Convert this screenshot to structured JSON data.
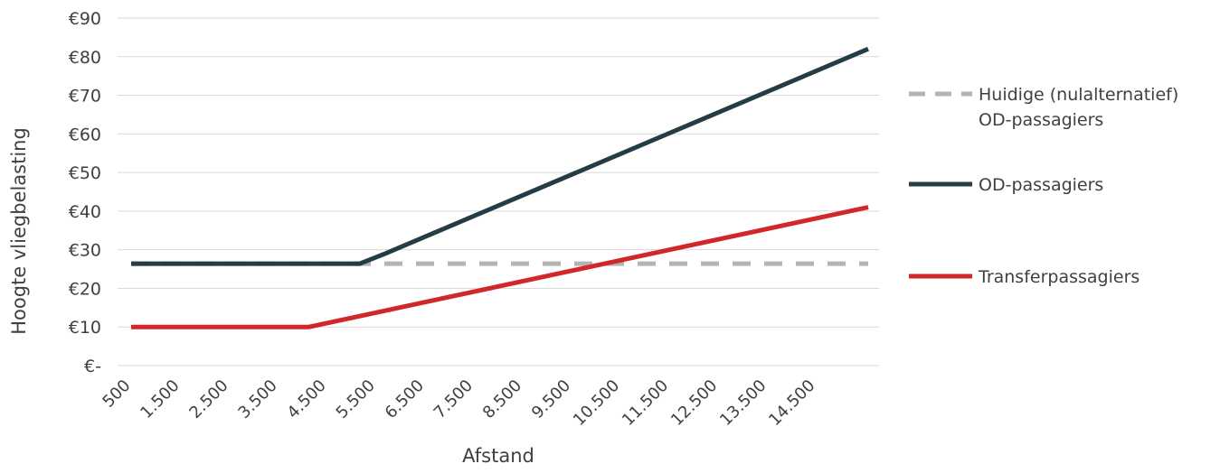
{
  "chart_data": {
    "type": "line",
    "title": "",
    "xlabel": "Afstand",
    "ylabel": "Hoogte vliegbelasting",
    "categories": [
      "500",
      "1.500",
      "2.500",
      "3.500",
      "4.500",
      "5.500",
      "6.500",
      "7.500",
      "8.500",
      "9.500",
      "10.500",
      "11.500",
      "12.500",
      "13.500",
      "14.500"
    ],
    "x_range": [
      500,
      15000
    ],
    "ylim": [
      0,
      90
    ],
    "yticks": [
      {
        "value": 0,
        "label": "€-"
      },
      {
        "value": 10,
        "label": "€10"
      },
      {
        "value": 20,
        "label": "€20"
      },
      {
        "value": 30,
        "label": "€30"
      },
      {
        "value": 40,
        "label": "€40"
      },
      {
        "value": 50,
        "label": "€50"
      },
      {
        "value": 60,
        "label": "€60"
      },
      {
        "value": 70,
        "label": "€70"
      },
      {
        "value": 80,
        "label": "€80"
      },
      {
        "value": 90,
        "label": "€90"
      }
    ],
    "grid": true,
    "legend_position": "right",
    "series": [
      {
        "name": "Huidige (nulalternatief) OD-passagiers",
        "legend_lines": [
          "Huidige (nulalternatief)",
          "OD-passagiers"
        ],
        "color": "#b3b3b3",
        "dashed": true,
        "x": [
          500,
          15000
        ],
        "y": [
          26.4,
          26.4
        ]
      },
      {
        "name": "OD-passagiers",
        "legend_lines": [
          "OD-passagiers"
        ],
        "color": "#253c46",
        "dashed": false,
        "x": [
          500,
          5000,
          5500,
          15000
        ],
        "y": [
          26.4,
          26.4,
          29,
          82
        ]
      },
      {
        "name": "Transferpassagiers",
        "legend_lines": [
          "Transferpassagiers"
        ],
        "color": "#d1272b",
        "dashed": false,
        "x": [
          500,
          4000,
          15000
        ],
        "y": [
          10,
          10,
          41
        ]
      }
    ]
  }
}
